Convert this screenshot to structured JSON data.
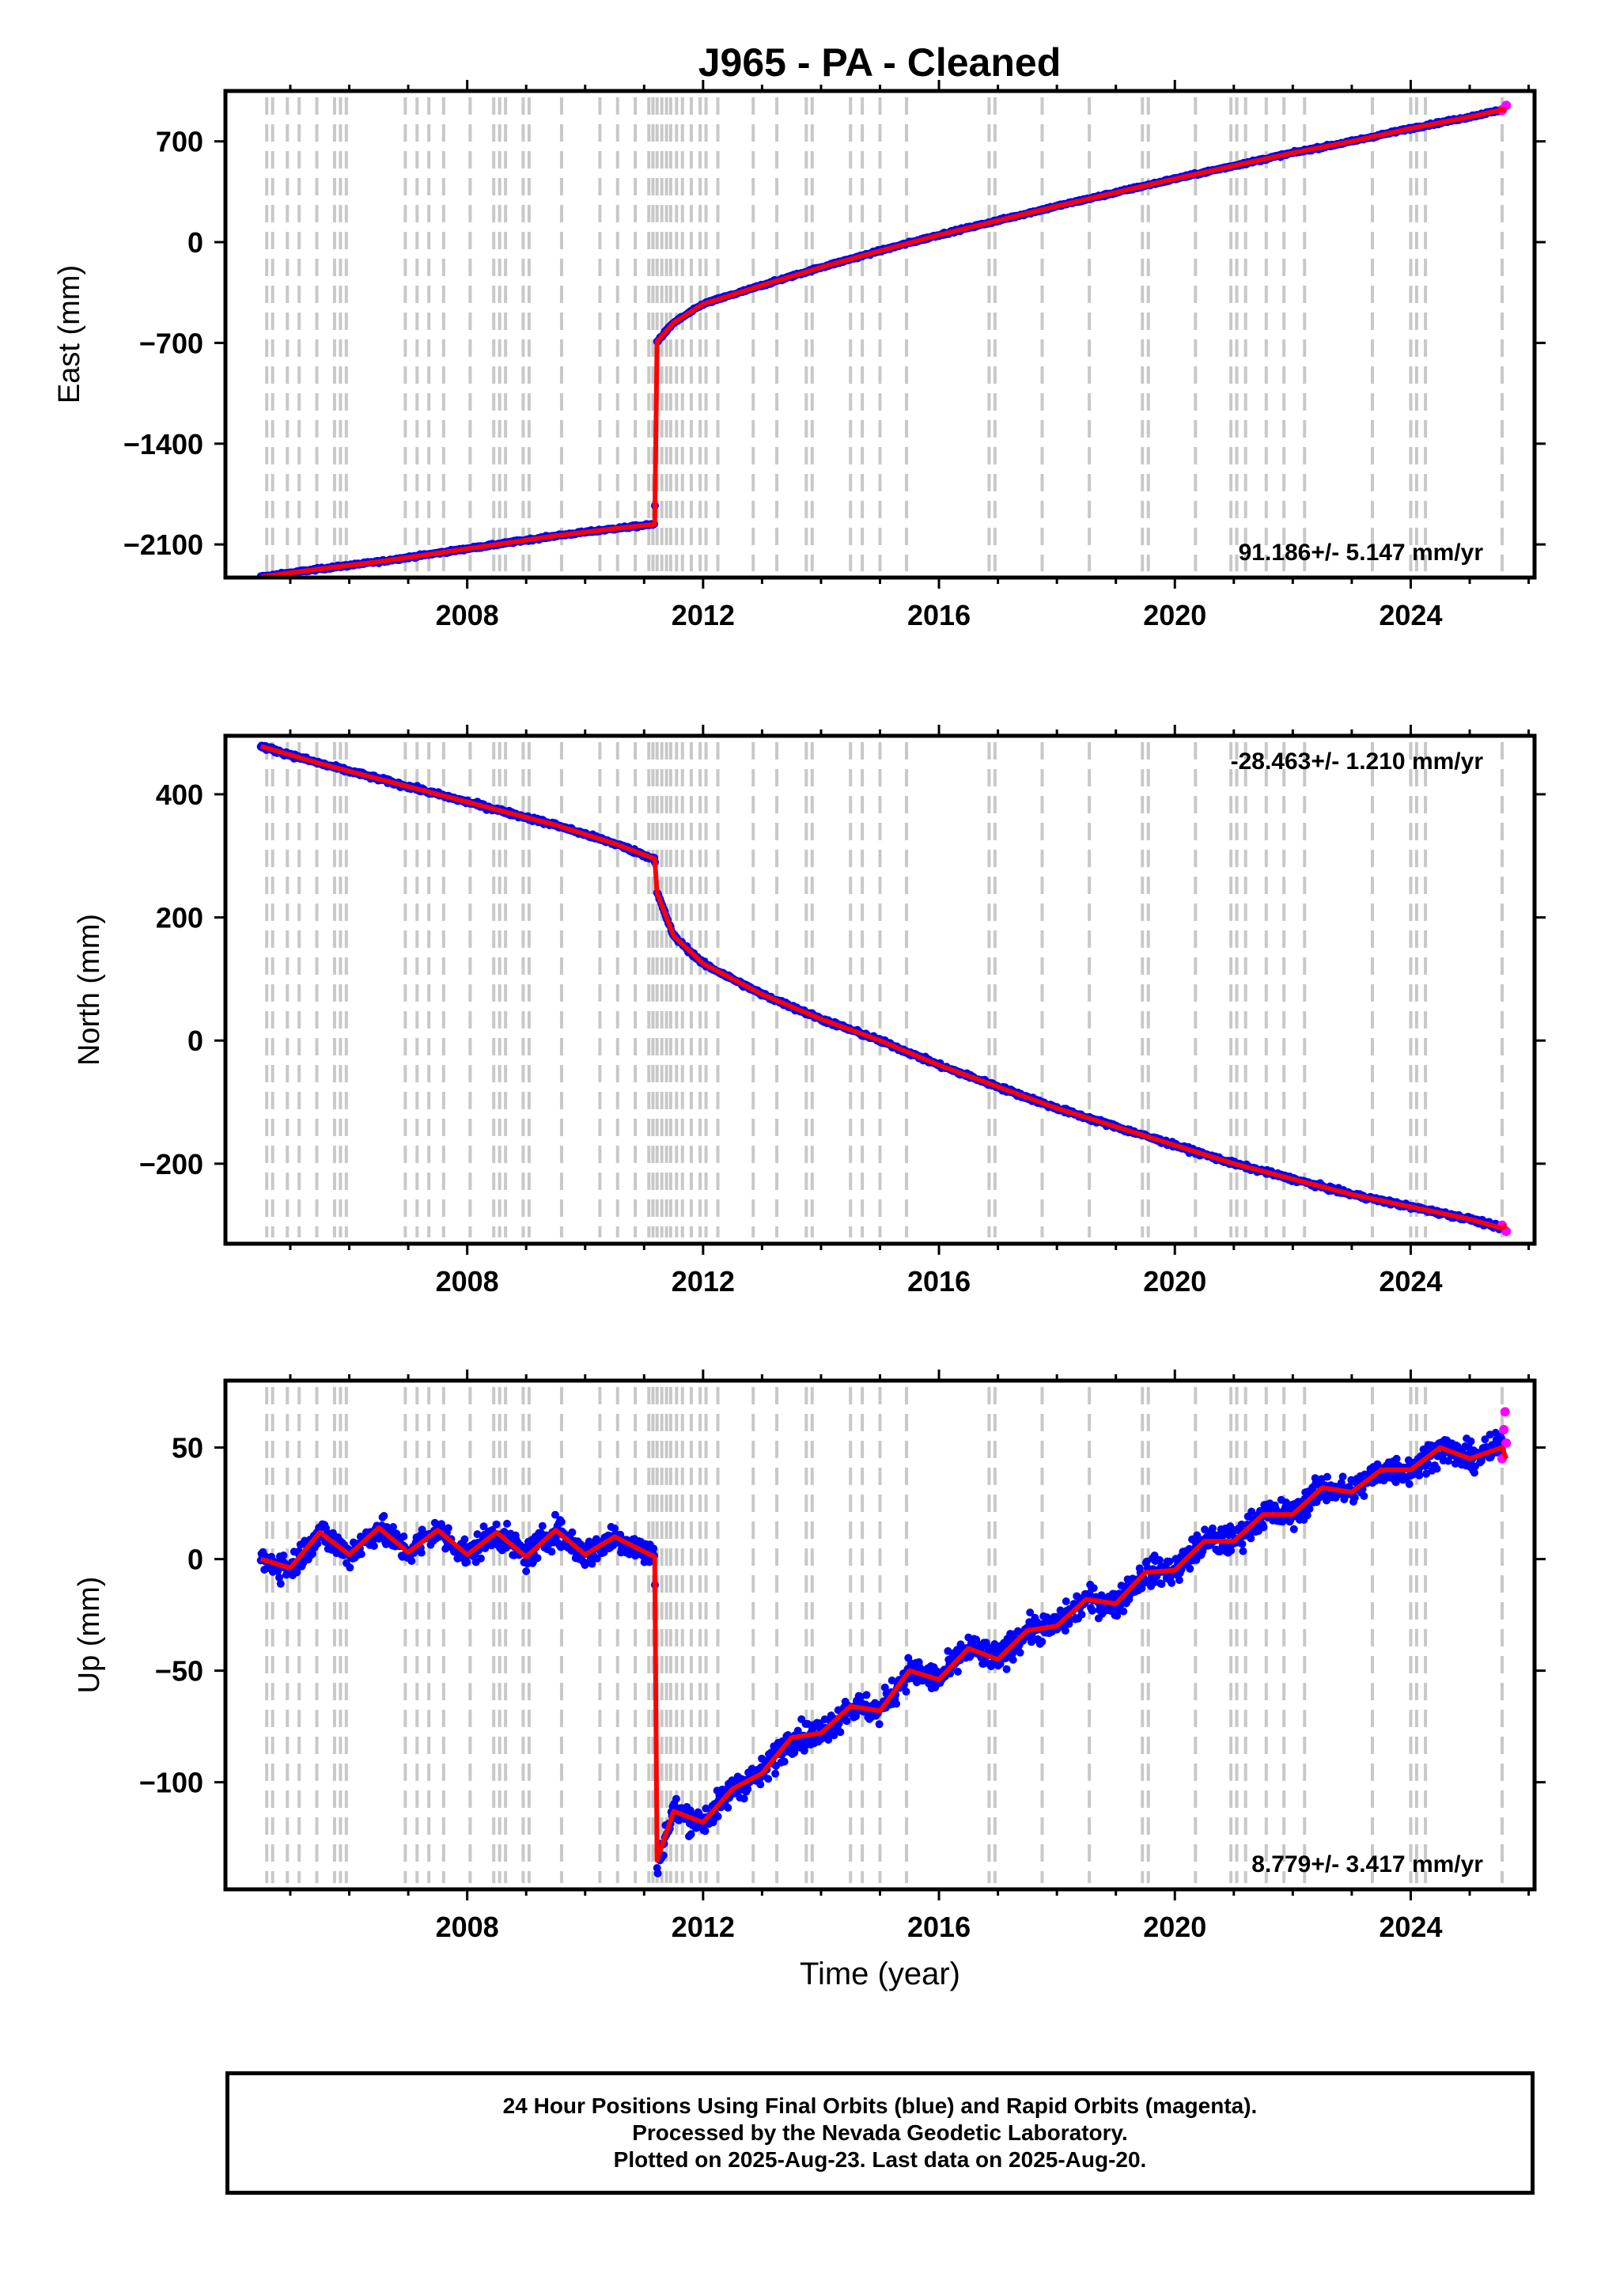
{
  "title": "J965  - PA - Cleaned",
  "colors": {
    "final_orbits": "#0000ff",
    "rapid_orbits": "#ff00ff",
    "model": "#ff0000",
    "event_lines": "#c8c8c8",
    "frame": "#000000"
  },
  "chart_data": [
    {
      "type": "scatter",
      "panel": "east",
      "ylabel": "East (mm)",
      "xlabel": "",
      "xlim": [
        2003.9,
        2026.1
      ],
      "ylim": [
        -2330,
        1050
      ],
      "yticks": [
        -2100,
        -1400,
        -700,
        0,
        700
      ],
      "xticks": [
        2008,
        2012,
        2016,
        2020,
        2024
      ],
      "rate_label": "91.186+/- 5.147 mm/yr",
      "rate_label_position": "bottom-right",
      "grid": false,
      "series": [
        {
          "name": "Final Orbits",
          "color": "#0000ff",
          "x": [
            2004.5,
            2005.5,
            2006.5,
            2007.5,
            2008.5,
            2009.5,
            2010.5,
            2011.18,
            2011.22,
            2011.5,
            2012.0,
            2013.0,
            2014.0,
            2015.0,
            2016.0,
            2017.0,
            2018.0,
            2019.0,
            2020.0,
            2021.0,
            2022.0,
            2023.0,
            2024.0,
            2025.0,
            2025.55
          ],
          "y": [
            -2325,
            -2270,
            -2220,
            -2160,
            -2100,
            -2040,
            -1990,
            -1960,
            -690,
            -560,
            -430,
            -300,
            -175,
            -60,
            50,
            150,
            250,
            345,
            440,
            530,
            620,
            700,
            790,
            870,
            920
          ]
        },
        {
          "name": "Rapid Orbits",
          "color": "#ff00ff",
          "x": [
            2025.55,
            2025.62
          ],
          "y": [
            915,
            950
          ]
        }
      ]
    },
    {
      "type": "scatter",
      "panel": "north",
      "ylabel": "North (mm)",
      "xlabel": "",
      "xlim": [
        2003.9,
        2026.1
      ],
      "ylim": [
        -330,
        495
      ],
      "yticks": [
        -200,
        0,
        200,
        400
      ],
      "xticks": [
        2008,
        2012,
        2016,
        2020,
        2024
      ],
      "rate_label": "-28.463+/- 1.210 mm/yr",
      "rate_label_position": "top-right",
      "grid": false,
      "series": [
        {
          "name": "Final Orbits",
          "color": "#0000ff",
          "x": [
            2004.5,
            2005.5,
            2006.5,
            2007.5,
            2008.5,
            2009.5,
            2010.5,
            2011.18,
            2011.22,
            2011.5,
            2012.0,
            2013.0,
            2014.0,
            2015.0,
            2016.0,
            2017.0,
            2018.0,
            2019.0,
            2020.0,
            2021.0,
            2022.0,
            2023.0,
            2024.0,
            2025.0,
            2025.55
          ],
          "y": [
            478,
            450,
            425,
            400,
            375,
            350,
            320,
            295,
            240,
            170,
            125,
            75,
            35,
            0,
            -40,
            -75,
            -110,
            -140,
            -170,
            -200,
            -225,
            -250,
            -270,
            -290,
            -305
          ]
        },
        {
          "name": "Rapid Orbits",
          "color": "#ff00ff",
          "x": [
            2025.55,
            2025.62
          ],
          "y": [
            -300,
            -310
          ]
        }
      ]
    },
    {
      "type": "scatter",
      "panel": "up",
      "ylabel": "Up (mm)",
      "xlabel": "Time (year)",
      "xlim": [
        2003.9,
        2026.1
      ],
      "ylim": [
        -148,
        80
      ],
      "yticks": [
        -100,
        -50,
        0,
        50
      ],
      "xticks": [
        2008,
        2012,
        2016,
        2020,
        2024
      ],
      "rate_label": "8.779+/- 3.417 mm/yr",
      "rate_label_position": "bottom-right",
      "grid": false,
      "series": [
        {
          "name": "Final Orbits",
          "color": "#0000ff",
          "x": [
            2004.5,
            2005.0,
            2005.5,
            2006.0,
            2006.5,
            2007.0,
            2007.5,
            2008.0,
            2008.5,
            2009.0,
            2009.5,
            2010.0,
            2010.5,
            2011.18,
            2011.22,
            2011.5,
            2012.0,
            2012.5,
            2013.0,
            2013.5,
            2014.0,
            2014.5,
            2015.0,
            2015.5,
            2016.0,
            2016.5,
            2017.0,
            2017.5,
            2018.0,
            2018.5,
            2019.0,
            2019.5,
            2020.0,
            2020.5,
            2021.0,
            2021.5,
            2022.0,
            2022.5,
            2023.0,
            2023.5,
            2024.0,
            2024.5,
            2025.0,
            2025.55
          ],
          "y": [
            0,
            -4,
            12,
            2,
            14,
            3,
            13,
            2,
            12,
            1,
            13,
            2,
            10,
            1,
            -135,
            -113,
            -118,
            -103,
            -96,
            -80,
            -78,
            -66,
            -68,
            -50,
            -54,
            -40,
            -45,
            -32,
            -30,
            -18,
            -20,
            -6,
            -5,
            8,
            8,
            20,
            20,
            32,
            30,
            40,
            40,
            50,
            45,
            50
          ]
        },
        {
          "name": "Rapid Orbits",
          "color": "#ff00ff",
          "x": [
            2025.55,
            2025.58,
            2025.6,
            2025.62
          ],
          "y": [
            45,
            58,
            66,
            52
          ]
        }
      ]
    }
  ],
  "caption": {
    "line1": "24 Hour Positions Using Final Orbits (blue) and Rapid Orbits (magenta).",
    "line2": "Processed by the Nevada Geodetic Laboratory.",
    "line3": "Plotted on 2025-Aug-23. Last data on 2025-Aug-20."
  },
  "event_lines": [
    2004.6,
    2004.7,
    2004.95,
    2005.15,
    2005.45,
    2005.75,
    2005.85,
    2005.95,
    2006.95,
    2007.15,
    2007.35,
    2007.6,
    2008.05,
    2008.45,
    2008.55,
    2008.65,
    2008.95,
    2009.05,
    2009.6,
    2010.25,
    2010.55,
    2010.85,
    2011.08,
    2011.15,
    2011.22,
    2011.3,
    2011.38,
    2011.45,
    2011.55,
    2011.65,
    2011.8,
    2011.95,
    2012.05,
    2012.25,
    2012.85,
    2013.25,
    2013.75,
    2013.85,
    2014.5,
    2014.7,
    2015.0,
    2015.45,
    2016.85,
    2016.95,
    2017.75,
    2018.55,
    2019.45,
    2019.55,
    2020.35,
    2020.95,
    2021.05,
    2021.2,
    2021.55,
    2021.85,
    2022.2,
    2023.35,
    2024.0,
    2024.1,
    2024.25,
    2025.55
  ]
}
